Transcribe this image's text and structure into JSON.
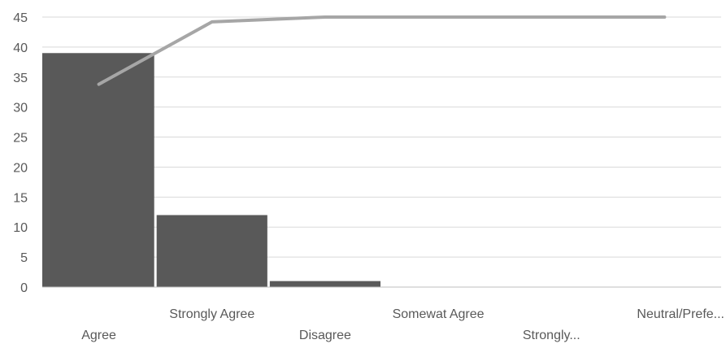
{
  "chart_data": {
    "type": "bar",
    "categories": [
      "Agree",
      "Strongly Agree",
      "Disagree",
      "Somewat Agree",
      "Strongly...",
      "Neutral/Prefe..."
    ],
    "series": [
      {
        "type": "bar",
        "values": [
          39,
          12,
          1,
          0,
          0,
          0
        ],
        "color": "#595959"
      },
      {
        "type": "line",
        "values": [
          33.8,
          44.2,
          45,
          45,
          45,
          45
        ],
        "color": "#a6a6a6"
      }
    ],
    "yticks": [
      "0",
      "5",
      "10",
      "15",
      "20",
      "25",
      "30",
      "35",
      "40",
      "45"
    ],
    "ylim": [
      0,
      45
    ],
    "grid": true,
    "legend": "none",
    "gridColor": "#d9d9d9",
    "axisColor": "#bfbfbf"
  }
}
